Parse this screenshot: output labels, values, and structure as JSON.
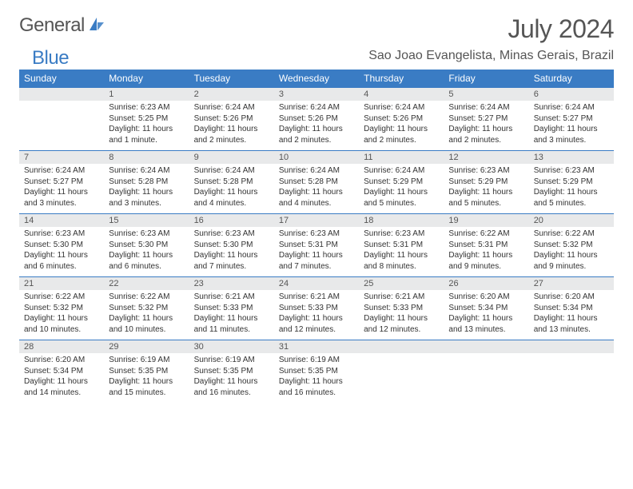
{
  "brand": {
    "part1": "General",
    "part2": "Blue"
  },
  "title": "July 2024",
  "location": "Sao Joao Evangelista, Minas Gerais, Brazil",
  "day_headers": [
    "Sunday",
    "Monday",
    "Tuesday",
    "Wednesday",
    "Thursday",
    "Friday",
    "Saturday"
  ],
  "colors": {
    "header_bg": "#3a7cc4",
    "header_text": "#ffffff",
    "daynum_bg": "#e8e9ea",
    "rule": "#3a7cc4",
    "body_text": "#333333",
    "title_text": "#555555"
  },
  "typography": {
    "title_fontsize": 32,
    "location_fontsize": 16,
    "dayhead_fontsize": 12,
    "cell_fontsize": 10
  },
  "grid_start_offset": 1,
  "days": [
    {
      "n": 1,
      "sunrise": "6:23 AM",
      "sunset": "5:25 PM",
      "daylight": "11 hours and 1 minute."
    },
    {
      "n": 2,
      "sunrise": "6:24 AM",
      "sunset": "5:26 PM",
      "daylight": "11 hours and 2 minutes."
    },
    {
      "n": 3,
      "sunrise": "6:24 AM",
      "sunset": "5:26 PM",
      "daylight": "11 hours and 2 minutes."
    },
    {
      "n": 4,
      "sunrise": "6:24 AM",
      "sunset": "5:26 PM",
      "daylight": "11 hours and 2 minutes."
    },
    {
      "n": 5,
      "sunrise": "6:24 AM",
      "sunset": "5:27 PM",
      "daylight": "11 hours and 2 minutes."
    },
    {
      "n": 6,
      "sunrise": "6:24 AM",
      "sunset": "5:27 PM",
      "daylight": "11 hours and 3 minutes."
    },
    {
      "n": 7,
      "sunrise": "6:24 AM",
      "sunset": "5:27 PM",
      "daylight": "11 hours and 3 minutes."
    },
    {
      "n": 8,
      "sunrise": "6:24 AM",
      "sunset": "5:28 PM",
      "daylight": "11 hours and 3 minutes."
    },
    {
      "n": 9,
      "sunrise": "6:24 AM",
      "sunset": "5:28 PM",
      "daylight": "11 hours and 4 minutes."
    },
    {
      "n": 10,
      "sunrise": "6:24 AM",
      "sunset": "5:28 PM",
      "daylight": "11 hours and 4 minutes."
    },
    {
      "n": 11,
      "sunrise": "6:24 AM",
      "sunset": "5:29 PM",
      "daylight": "11 hours and 5 minutes."
    },
    {
      "n": 12,
      "sunrise": "6:23 AM",
      "sunset": "5:29 PM",
      "daylight": "11 hours and 5 minutes."
    },
    {
      "n": 13,
      "sunrise": "6:23 AM",
      "sunset": "5:29 PM",
      "daylight": "11 hours and 5 minutes."
    },
    {
      "n": 14,
      "sunrise": "6:23 AM",
      "sunset": "5:30 PM",
      "daylight": "11 hours and 6 minutes."
    },
    {
      "n": 15,
      "sunrise": "6:23 AM",
      "sunset": "5:30 PM",
      "daylight": "11 hours and 6 minutes."
    },
    {
      "n": 16,
      "sunrise": "6:23 AM",
      "sunset": "5:30 PM",
      "daylight": "11 hours and 7 minutes."
    },
    {
      "n": 17,
      "sunrise": "6:23 AM",
      "sunset": "5:31 PM",
      "daylight": "11 hours and 7 minutes."
    },
    {
      "n": 18,
      "sunrise": "6:23 AM",
      "sunset": "5:31 PM",
      "daylight": "11 hours and 8 minutes."
    },
    {
      "n": 19,
      "sunrise": "6:22 AM",
      "sunset": "5:31 PM",
      "daylight": "11 hours and 9 minutes."
    },
    {
      "n": 20,
      "sunrise": "6:22 AM",
      "sunset": "5:32 PM",
      "daylight": "11 hours and 9 minutes."
    },
    {
      "n": 21,
      "sunrise": "6:22 AM",
      "sunset": "5:32 PM",
      "daylight": "11 hours and 10 minutes."
    },
    {
      "n": 22,
      "sunrise": "6:22 AM",
      "sunset": "5:32 PM",
      "daylight": "11 hours and 10 minutes."
    },
    {
      "n": 23,
      "sunrise": "6:21 AM",
      "sunset": "5:33 PM",
      "daylight": "11 hours and 11 minutes."
    },
    {
      "n": 24,
      "sunrise": "6:21 AM",
      "sunset": "5:33 PM",
      "daylight": "11 hours and 12 minutes."
    },
    {
      "n": 25,
      "sunrise": "6:21 AM",
      "sunset": "5:33 PM",
      "daylight": "11 hours and 12 minutes."
    },
    {
      "n": 26,
      "sunrise": "6:20 AM",
      "sunset": "5:34 PM",
      "daylight": "11 hours and 13 minutes."
    },
    {
      "n": 27,
      "sunrise": "6:20 AM",
      "sunset": "5:34 PM",
      "daylight": "11 hours and 13 minutes."
    },
    {
      "n": 28,
      "sunrise": "6:20 AM",
      "sunset": "5:34 PM",
      "daylight": "11 hours and 14 minutes."
    },
    {
      "n": 29,
      "sunrise": "6:19 AM",
      "sunset": "5:35 PM",
      "daylight": "11 hours and 15 minutes."
    },
    {
      "n": 30,
      "sunrise": "6:19 AM",
      "sunset": "5:35 PM",
      "daylight": "11 hours and 16 minutes."
    },
    {
      "n": 31,
      "sunrise": "6:19 AM",
      "sunset": "5:35 PM",
      "daylight": "11 hours and 16 minutes."
    }
  ],
  "labels": {
    "sunrise_prefix": "Sunrise: ",
    "sunset_prefix": "Sunset: ",
    "daylight_prefix": "Daylight: "
  }
}
